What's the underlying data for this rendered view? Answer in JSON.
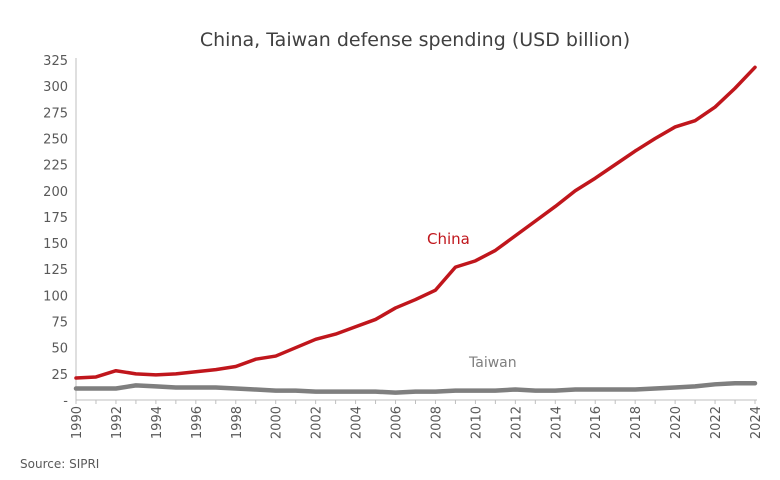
{
  "chart_data": {
    "type": "line",
    "title": "China, Taiwan defense spending (USD billion)",
    "source": "Source: SIPRI",
    "x": [
      1990,
      1991,
      1992,
      1993,
      1994,
      1995,
      1996,
      1997,
      1998,
      1999,
      2000,
      2001,
      2002,
      2003,
      2004,
      2005,
      2006,
      2007,
      2008,
      2009,
      2010,
      2011,
      2012,
      2013,
      2014,
      2015,
      2016,
      2017,
      2018,
      2019,
      2020,
      2021,
      2022,
      2023,
      2024
    ],
    "xticks": [
      "1990",
      "1992",
      "1994",
      "1996",
      "1998",
      "2000",
      "2002",
      "2004",
      "2006",
      "2008",
      "2010",
      "2012",
      "2014",
      "2016",
      "2018",
      "2020",
      "2022",
      "2024"
    ],
    "yticks": [
      "-",
      "25",
      "50",
      "75",
      "100",
      "125",
      "150",
      "175",
      "200",
      "225",
      "250",
      "275",
      "300",
      "325"
    ],
    "ylim": [
      0,
      325
    ],
    "xlim": [
      1990,
      2024
    ],
    "grid": false,
    "series": [
      {
        "name": "China",
        "color": "#c0161c",
        "values": [
          21,
          22,
          28,
          25,
          24,
          25,
          27,
          29,
          32,
          39,
          42,
          50,
          58,
          63,
          70,
          77,
          88,
          96,
          105,
          127,
          133,
          143,
          157,
          171,
          185,
          200,
          212,
          225,
          238,
          250,
          261,
          267,
          280,
          298,
          318
        ]
      },
      {
        "name": "Taiwan",
        "color": "#7f7f7f",
        "values": [
          11,
          11,
          11,
          14,
          13,
          12,
          12,
          12,
          11,
          10,
          9,
          9,
          8,
          8,
          8,
          8,
          7,
          8,
          8,
          9,
          9,
          9,
          10,
          9,
          9,
          10,
          10,
          10,
          10,
          11,
          12,
          13,
          15,
          16,
          16
        ]
      }
    ]
  }
}
